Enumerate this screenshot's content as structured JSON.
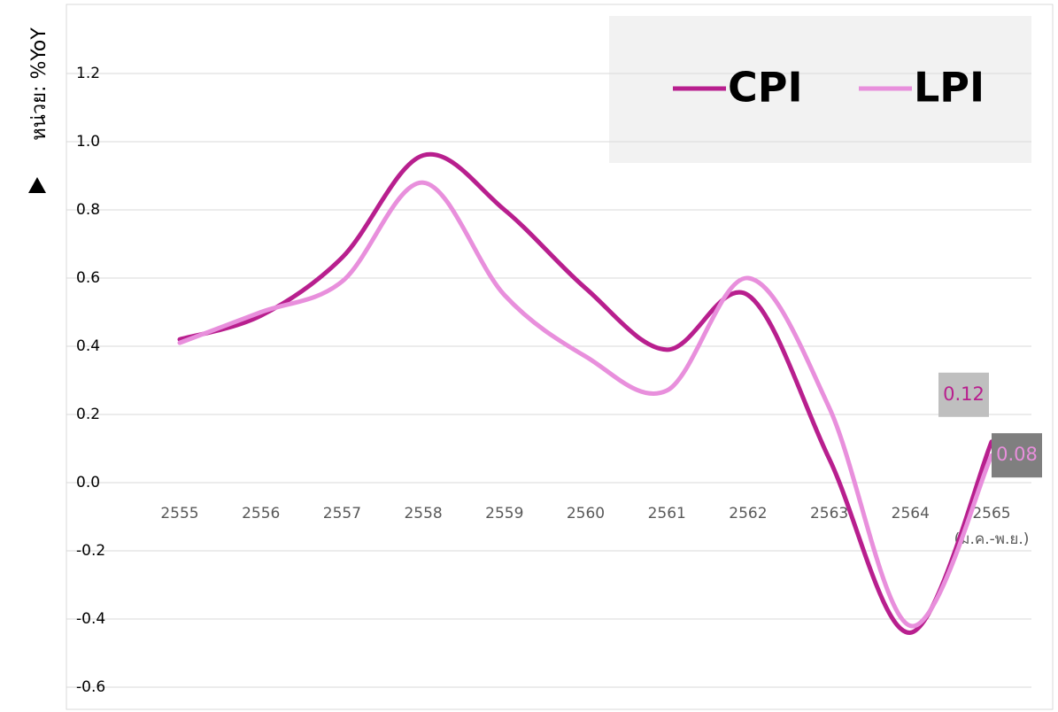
{
  "chart_data": {
    "type": "line",
    "y_axis_label": "หน่วย: %YoY",
    "categories": [
      "2555",
      "2556",
      "2557",
      "2558",
      "2559",
      "2560",
      "2561",
      "2562",
      "2563",
      "2564",
      "2565\n(ม.ค.-พ.ย.)"
    ],
    "series": [
      {
        "name": "CPI",
        "color": "#b81f8e",
        "values": [
          0.42,
          0.49,
          0.66,
          0.96,
          0.8,
          0.57,
          0.39,
          0.55,
          0.07,
          -0.44,
          0.12
        ],
        "value_labels": [
          null,
          null,
          null,
          null,
          null,
          null,
          null,
          null,
          null,
          null,
          "0.12"
        ]
      },
      {
        "name": "LPI",
        "color": "#e88fdc",
        "values": [
          0.41,
          0.5,
          0.59,
          0.88,
          0.55,
          0.37,
          0.27,
          0.6,
          0.22,
          -0.42,
          0.08
        ],
        "value_labels": [
          null,
          null,
          null,
          null,
          null,
          null,
          null,
          null,
          null,
          null,
          "0.08"
        ]
      }
    ],
    "ylim": [
      -0.6,
      1.4
    ],
    "yticks": [
      {
        "value": -0.6,
        "label": "-0.6"
      },
      {
        "value": -0.4,
        "label": "-0.4"
      },
      {
        "value": -0.2,
        "label": "-0.2"
      },
      {
        "value": 0,
        "label": "0.0"
      },
      {
        "value": 0.2,
        "label": "0.2"
      },
      {
        "value": 0.4,
        "label": "0.4"
      },
      {
        "value": 0.6,
        "label": "0.6"
      },
      {
        "value": 0.8,
        "label": "0.8"
      },
      {
        "value": 1,
        "label": "1.0"
      },
      {
        "value": 1.2,
        "label": "1.2"
      }
    ],
    "grid": true,
    "legend": "top-right"
  }
}
